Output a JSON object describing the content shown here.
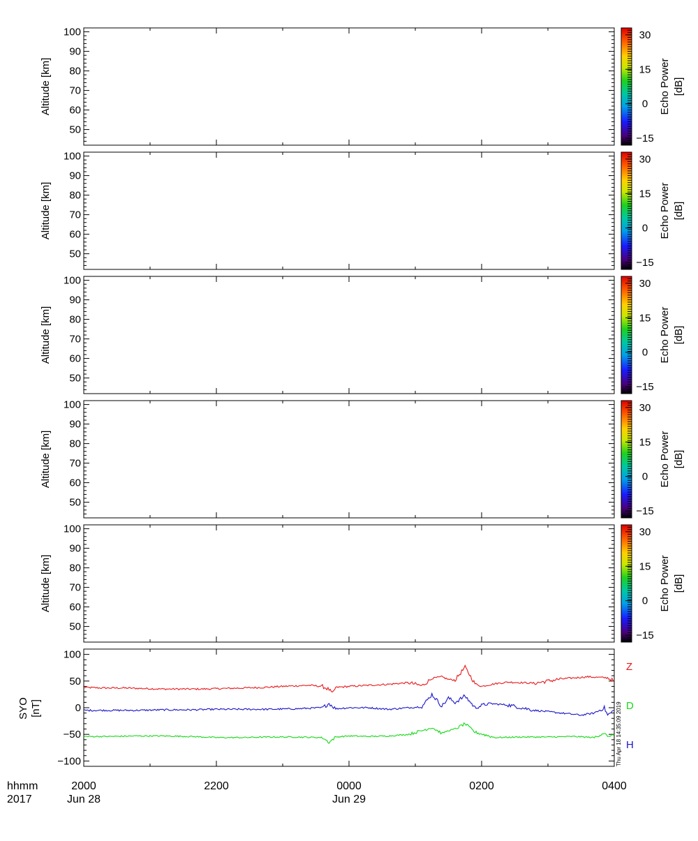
{
  "panels": [
    {
      "ylabel": "Altitude  [km]",
      "yticks": [
        50,
        60,
        70,
        80,
        90,
        100
      ],
      "ylim": [
        42,
        102
      ],
      "colorbar": {
        "label_line1": "Echo Power",
        "label_line2": "[dB]",
        "ticks": [
          "30",
          "15",
          "0",
          "−15"
        ],
        "range": [
          -18,
          33
        ]
      }
    },
    {
      "ylabel": "Altitude  [km]",
      "yticks": [
        50,
        60,
        70,
        80,
        90,
        100
      ],
      "ylim": [
        42,
        102
      ],
      "colorbar": {
        "label_line1": "Echo Power",
        "label_line2": "[dB]",
        "ticks": [
          "30",
          "15",
          "0",
          "−15"
        ],
        "range": [
          -18,
          33
        ]
      }
    },
    {
      "ylabel": "Altitude  [km]",
      "yticks": [
        50,
        60,
        70,
        80,
        90,
        100
      ],
      "ylim": [
        42,
        102
      ],
      "colorbar": {
        "label_line1": "Echo Power",
        "label_line2": "[dB]",
        "ticks": [
          "30",
          "15",
          "0",
          "−15"
        ],
        "range": [
          -18,
          33
        ]
      }
    },
    {
      "ylabel": "Altitude  [km]",
      "yticks": [
        50,
        60,
        70,
        80,
        90,
        100
      ],
      "ylim": [
        42,
        102
      ],
      "colorbar": {
        "label_line1": "Echo Power",
        "label_line2": "[dB]",
        "ticks": [
          "30",
          "15",
          "0",
          "−15"
        ],
        "range": [
          -18,
          33
        ]
      }
    },
    {
      "ylabel": "Altitude  [km]",
      "yticks": [
        50,
        60,
        70,
        80,
        90,
        100
      ],
      "ylim": [
        42,
        102
      ],
      "colorbar": {
        "label_line1": "Echo Power",
        "label_line2": "[dB]",
        "ticks": [
          "30",
          "15",
          "0",
          "−15"
        ],
        "range": [
          -18,
          33
        ]
      }
    }
  ],
  "magnetometer": {
    "ylabel_line1": "SYO",
    "ylabel_line2": "[nT]",
    "yticks": [
      100,
      50,
      0,
      -50,
      -100
    ],
    "ytick_labels": [
      "100",
      "50",
      "0",
      "−50",
      "−100"
    ],
    "ylim": [
      -110,
      110
    ],
    "labels": [
      "Z",
      "D",
      "H"
    ]
  },
  "x_axis": {
    "row_label_top": "hhmm",
    "row_label_bottom": "2017",
    "ticks": [
      {
        "top": "2000",
        "bottom": "Jun 28"
      },
      {
        "top": "2200",
        "bottom": ""
      },
      {
        "top": "0000",
        "bottom": "Jun 29"
      },
      {
        "top": "0200",
        "bottom": ""
      },
      {
        "top": "0400",
        "bottom": ""
      }
    ]
  },
  "timestamp": "Thu Apr 18 14:35:09 2019",
  "colors": {
    "Z": "#e8191a",
    "D": "#1a16c8",
    "H": "#16d816",
    "axis": "#000000"
  },
  "chart_data": {
    "type": "line",
    "x_unit": "hours after 2017-06-28 20:00 UT",
    "xlim": [
      0,
      8
    ],
    "ylabel": "SYO [nT]",
    "ylim": [
      -110,
      110
    ],
    "series": [
      {
        "name": "Z",
        "x": [
          0,
          0.3,
          0.6,
          0.9,
          1.2,
          1.5,
          1.8,
          2.1,
          2.4,
          2.7,
          3.0,
          3.4,
          3.6,
          3.7,
          3.75,
          3.8,
          4.0,
          4.3,
          4.6,
          4.9,
          5.1,
          5.25,
          5.4,
          5.5,
          5.6,
          5.75,
          5.9,
          6.0,
          6.2,
          6.4,
          6.8,
          7.2,
          7.6,
          7.9,
          8.0
        ],
        "values": [
          38,
          37,
          37,
          36,
          35,
          35,
          35,
          36,
          37,
          38,
          40,
          42,
          40,
          34,
          26,
          38,
          40,
          42,
          44,
          47,
          41,
          55,
          58,
          53,
          52,
          76,
          45,
          40,
          45,
          48,
          46,
          54,
          58,
          56,
          50
        ]
      },
      {
        "name": "D",
        "x": [
          0,
          0.4,
          0.8,
          1.2,
          1.6,
          2.0,
          2.4,
          2.8,
          3.2,
          3.6,
          3.7,
          3.8,
          4.0,
          4.3,
          4.6,
          4.9,
          5.1,
          5.25,
          5.4,
          5.5,
          5.6,
          5.75,
          5.9,
          6.1,
          6.4,
          6.8,
          7.2,
          7.5,
          7.7,
          7.85,
          7.9,
          8.0
        ],
        "values": [
          -5,
          -5,
          -5,
          -4,
          -4,
          -3,
          -3,
          -3,
          -2,
          0,
          8,
          -2,
          0,
          0,
          -3,
          0,
          2,
          25,
          3,
          18,
          10,
          22,
          0,
          8,
          5,
          -5,
          -10,
          -14,
          -10,
          0,
          -14,
          -5
        ]
      },
      {
        "name": "H",
        "x": [
          0,
          0.4,
          0.8,
          1.2,
          1.6,
          2.0,
          2.4,
          2.8,
          3.2,
          3.6,
          3.7,
          3.8,
          4.0,
          4.3,
          4.6,
          4.9,
          5.1,
          5.25,
          5.4,
          5.5,
          5.6,
          5.75,
          5.9,
          6.2,
          6.6,
          7.0,
          7.4,
          7.7,
          7.85,
          7.9,
          8.0
        ],
        "values": [
          -54,
          -54,
          -53,
          -53,
          -54,
          -56,
          -56,
          -55,
          -55,
          -56,
          -65,
          -55,
          -53,
          -54,
          -53,
          -50,
          -43,
          -37,
          -48,
          -43,
          -40,
          -30,
          -46,
          -56,
          -55,
          -55,
          -54,
          -56,
          -47,
          -55,
          -50
        ]
      }
    ]
  }
}
